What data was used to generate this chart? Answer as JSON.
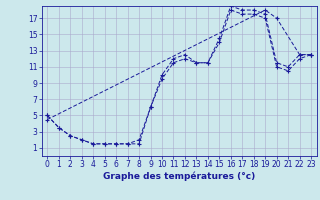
{
  "title": "",
  "xlabel": "Graphe des températures (°c)",
  "bg_color": "#cce8ec",
  "grid_color": "#aaaacc",
  "line_color": "#1a1a9a",
  "series": [
    {
      "x": [
        0,
        1,
        2,
        3,
        4,
        5,
        6,
        7,
        8,
        9,
        10,
        11,
        12,
        13,
        14,
        15,
        16,
        17,
        18,
        19,
        20,
        21,
        22,
        23
      ],
      "y": [
        5,
        3.5,
        2.5,
        2,
        1.5,
        1.5,
        1.5,
        1.5,
        1.5,
        6,
        10,
        12,
        12.5,
        11.5,
        11.5,
        14.5,
        18.5,
        18,
        18,
        17.5,
        11.5,
        11,
        12.5,
        12.5
      ]
    },
    {
      "x": [
        0,
        1,
        2,
        3,
        4,
        5,
        6,
        7,
        8,
        9,
        10,
        11,
        12,
        13,
        14,
        15,
        16,
        17,
        18,
        19,
        20,
        21,
        22,
        23
      ],
      "y": [
        5,
        3.5,
        2.5,
        2,
        1.5,
        1.5,
        1.5,
        1.5,
        2,
        6,
        9.5,
        11.5,
        12,
        11.5,
        11.5,
        14,
        18,
        17.5,
        17.5,
        17,
        11,
        10.5,
        12,
        12.5
      ]
    },
    {
      "x": [
        0,
        19,
        20,
        22,
        23
      ],
      "y": [
        4.5,
        18,
        17,
        12.5,
        12.5
      ]
    }
  ],
  "xlim": [
    -0.5,
    23.5
  ],
  "ylim": [
    0,
    18.5
  ],
  "xticks": [
    0,
    1,
    2,
    3,
    4,
    5,
    6,
    7,
    8,
    9,
    10,
    11,
    12,
    13,
    14,
    15,
    16,
    17,
    18,
    19,
    20,
    21,
    22,
    23
  ],
  "yticks": [
    1,
    3,
    5,
    7,
    9,
    11,
    13,
    15,
    17
  ],
  "xlabel_fontsize": 6.5,
  "tick_fontsize": 5.5,
  "xlabel_fontweight": "bold"
}
